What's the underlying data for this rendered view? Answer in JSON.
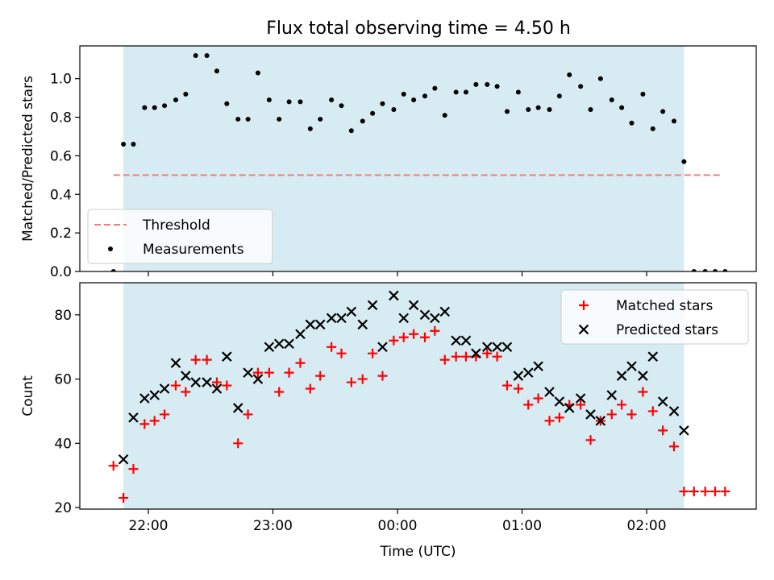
{
  "title": "Flux total observing time = 4.50 h",
  "colors": {
    "shade": "#add8e6",
    "threshold": "#f08080",
    "measurements": "#000000",
    "matched": "#ff0000",
    "predicted": "#000000"
  },
  "chart_data": [
    {
      "type": "scatter",
      "ylabel": "Matched/Predicted stars",
      "xlabel": "",
      "ylim": [
        0,
        1.17
      ],
      "yticks": [
        0.0,
        0.2,
        0.4,
        0.6,
        0.8,
        1.0
      ],
      "ytick_labels": [
        "0.0",
        "0.2",
        "0.4",
        "0.6",
        "0.8",
        "1.0"
      ],
      "xlim_hours": [
        -2.55,
        2.88
      ],
      "xticks_hours": [
        -2,
        -1,
        0,
        1,
        2
      ],
      "shaded_region_hours": [
        -2.2,
        2.3
      ],
      "legend": {
        "placement": "lower left",
        "entries": [
          "Threshold",
          "Measurements"
        ]
      },
      "threshold": {
        "name": "Threshold",
        "value": 0.5,
        "x_range_hours": [
          -2.28,
          2.6
        ]
      },
      "series": [
        {
          "name": "Measurements",
          "marker": "dot",
          "points": [
            [
              -2.28,
              0.0
            ],
            [
              -2.2,
              0.66
            ],
            [
              -2.12,
              0.66
            ],
            [
              -2.03,
              0.85
            ],
            [
              -1.95,
              0.85
            ],
            [
              -1.87,
              0.86
            ],
            [
              -1.78,
              0.89
            ],
            [
              -1.7,
              0.92
            ],
            [
              -1.62,
              1.12
            ],
            [
              -1.53,
              1.12
            ],
            [
              -1.45,
              1.04
            ],
            [
              -1.37,
              0.87
            ],
            [
              -1.28,
              0.79
            ],
            [
              -1.2,
              0.79
            ],
            [
              -1.12,
              1.03
            ],
            [
              -1.03,
              0.89
            ],
            [
              -0.95,
              0.79
            ],
            [
              -0.87,
              0.88
            ],
            [
              -0.78,
              0.88
            ],
            [
              -0.7,
              0.74
            ],
            [
              -0.62,
              0.79
            ],
            [
              -0.53,
              0.89
            ],
            [
              -0.45,
              0.86
            ],
            [
              -0.37,
              0.73
            ],
            [
              -0.28,
              0.78
            ],
            [
              -0.2,
              0.82
            ],
            [
              -0.12,
              0.87
            ],
            [
              -0.03,
              0.84
            ],
            [
              0.05,
              0.92
            ],
            [
              0.13,
              0.89
            ],
            [
              0.22,
              0.91
            ],
            [
              0.3,
              0.95
            ],
            [
              0.38,
              0.81
            ],
            [
              0.47,
              0.93
            ],
            [
              0.55,
              0.93
            ],
            [
              0.63,
              0.97
            ],
            [
              0.72,
              0.97
            ],
            [
              0.8,
              0.96
            ],
            [
              0.88,
              0.83
            ],
            [
              0.97,
              0.93
            ],
            [
              1.05,
              0.84
            ],
            [
              1.13,
              0.85
            ],
            [
              1.22,
              0.84
            ],
            [
              1.3,
              0.91
            ],
            [
              1.38,
              1.02
            ],
            [
              1.47,
              0.96
            ],
            [
              1.55,
              0.84
            ],
            [
              1.63,
              1.0
            ],
            [
              1.72,
              0.89
            ],
            [
              1.8,
              0.85
            ],
            [
              1.88,
              0.77
            ],
            [
              1.97,
              0.92
            ],
            [
              2.05,
              0.74
            ],
            [
              2.13,
              0.83
            ],
            [
              2.22,
              0.78
            ],
            [
              2.3,
              0.57
            ],
            [
              2.38,
              0.0
            ],
            [
              2.47,
              0.0
            ],
            [
              2.55,
              0.0
            ],
            [
              2.63,
              0.0
            ]
          ]
        }
      ]
    },
    {
      "type": "scatter",
      "ylabel": "Count",
      "xlabel": "Time (UTC)",
      "ylim": [
        19.5,
        90
      ],
      "yticks": [
        20,
        40,
        60,
        80
      ],
      "ytick_labels": [
        "20",
        "40",
        "60",
        "80"
      ],
      "xlim_hours": [
        -2.55,
        2.88
      ],
      "xticks_hours": [
        -2,
        -1,
        0,
        1,
        2
      ],
      "xtick_labels": [
        "22:00",
        "23:00",
        "00:00",
        "01:00",
        "02:00"
      ],
      "shaded_region_hours": [
        -2.2,
        2.3
      ],
      "legend": {
        "placement": "upper right",
        "entries": [
          "Matched stars",
          "Predicted stars"
        ]
      },
      "series": [
        {
          "name": "Matched stars",
          "marker": "plus",
          "points": [
            [
              -2.28,
              33
            ],
            [
              -2.2,
              23
            ],
            [
              -2.12,
              32
            ],
            [
              -2.03,
              46
            ],
            [
              -1.95,
              47
            ],
            [
              -1.87,
              49
            ],
            [
              -1.78,
              58
            ],
            [
              -1.7,
              56
            ],
            [
              -1.62,
              66
            ],
            [
              -1.53,
              66
            ],
            [
              -1.45,
              59
            ],
            [
              -1.37,
              58
            ],
            [
              -1.28,
              40
            ],
            [
              -1.2,
              49
            ],
            [
              -1.12,
              62
            ],
            [
              -1.03,
              62
            ],
            [
              -0.95,
              56
            ],
            [
              -0.87,
              62
            ],
            [
              -0.78,
              65
            ],
            [
              -0.7,
              57
            ],
            [
              -0.62,
              61
            ],
            [
              -0.53,
              70
            ],
            [
              -0.45,
              68
            ],
            [
              -0.37,
              59
            ],
            [
              -0.28,
              60
            ],
            [
              -0.2,
              68
            ],
            [
              -0.12,
              61
            ],
            [
              -0.03,
              72
            ],
            [
              0.05,
              73
            ],
            [
              0.13,
              74
            ],
            [
              0.22,
              73
            ],
            [
              0.3,
              75
            ],
            [
              0.38,
              66
            ],
            [
              0.47,
              67
            ],
            [
              0.55,
              67
            ],
            [
              0.63,
              67
            ],
            [
              0.72,
              68
            ],
            [
              0.8,
              67
            ],
            [
              0.88,
              58
            ],
            [
              0.97,
              57
            ],
            [
              1.05,
              52
            ],
            [
              1.13,
              54
            ],
            [
              1.22,
              47
            ],
            [
              1.3,
              48
            ],
            [
              1.38,
              52
            ],
            [
              1.47,
              52
            ],
            [
              1.55,
              41
            ],
            [
              1.63,
              47
            ],
            [
              1.72,
              49
            ],
            [
              1.8,
              52
            ],
            [
              1.88,
              49
            ],
            [
              1.97,
              56
            ],
            [
              2.05,
              50
            ],
            [
              2.13,
              44
            ],
            [
              2.22,
              39
            ],
            [
              2.3,
              25
            ],
            [
              2.38,
              25
            ],
            [
              2.47,
              25
            ],
            [
              2.55,
              25
            ],
            [
              2.63,
              25
            ]
          ]
        },
        {
          "name": "Predicted stars",
          "marker": "x",
          "points": [
            [
              -2.2,
              35
            ],
            [
              -2.12,
              48
            ],
            [
              -2.03,
              54
            ],
            [
              -1.95,
              55
            ],
            [
              -1.87,
              57
            ],
            [
              -1.78,
              65
            ],
            [
              -1.7,
              61
            ],
            [
              -1.62,
              59
            ],
            [
              -1.53,
              59
            ],
            [
              -1.45,
              57
            ],
            [
              -1.37,
              67
            ],
            [
              -1.28,
              51
            ],
            [
              -1.2,
              62
            ],
            [
              -1.12,
              60
            ],
            [
              -1.03,
              70
            ],
            [
              -0.95,
              71
            ],
            [
              -0.87,
              71
            ],
            [
              -0.78,
              74
            ],
            [
              -0.7,
              77
            ],
            [
              -0.62,
              77
            ],
            [
              -0.53,
              79
            ],
            [
              -0.45,
              79
            ],
            [
              -0.37,
              81
            ],
            [
              -0.28,
              77
            ],
            [
              -0.2,
              83
            ],
            [
              -0.12,
              70
            ],
            [
              -0.03,
              86
            ],
            [
              0.05,
              79
            ],
            [
              0.13,
              83
            ],
            [
              0.22,
              80
            ],
            [
              0.3,
              79
            ],
            [
              0.38,
              81
            ],
            [
              0.47,
              72
            ],
            [
              0.55,
              72
            ],
            [
              0.63,
              68
            ],
            [
              0.72,
              70
            ],
            [
              0.8,
              70
            ],
            [
              0.88,
              70
            ],
            [
              0.97,
              61
            ],
            [
              1.05,
              62
            ],
            [
              1.13,
              64
            ],
            [
              1.22,
              56
            ],
            [
              1.3,
              53
            ],
            [
              1.38,
              51
            ],
            [
              1.47,
              54
            ],
            [
              1.55,
              49
            ],
            [
              1.63,
              47
            ],
            [
              1.72,
              55
            ],
            [
              1.8,
              61
            ],
            [
              1.88,
              64
            ],
            [
              1.97,
              61
            ],
            [
              2.05,
              67
            ],
            [
              2.13,
              53
            ],
            [
              2.22,
              50
            ],
            [
              2.3,
              44
            ]
          ]
        }
      ]
    }
  ]
}
